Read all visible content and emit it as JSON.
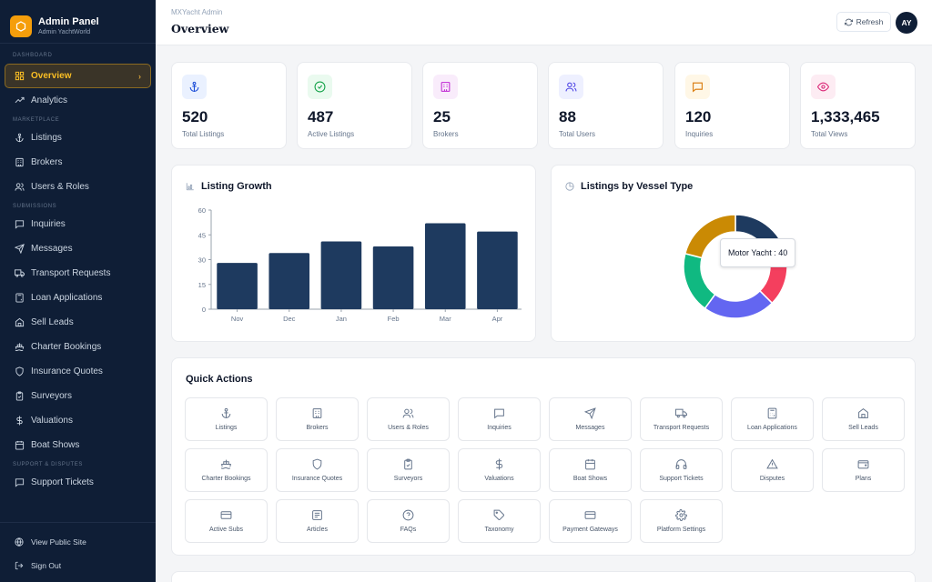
{
  "brand": {
    "title": "Admin Panel",
    "subtitle": "Admin YachtWorld"
  },
  "sidebar": {
    "sections": {
      "dashboard": "DASHBOARD",
      "marketplace": "MARKETPLACE",
      "submissions": "SUBMISSIONS",
      "support": "SUPPORT & DISPUTES"
    },
    "items": {
      "overview": "Overview",
      "analytics": "Analytics",
      "listings": "Listings",
      "brokers": "Brokers",
      "users_roles": "Users & Roles",
      "inquiries": "Inquiries",
      "messages": "Messages",
      "transport": "Transport Requests",
      "loans": "Loan Applications",
      "sell_leads": "Sell Leads",
      "charter": "Charter Bookings",
      "insurance": "Insurance Quotes",
      "surveyors": "Surveyors",
      "valuations": "Valuations",
      "boat_shows": "Boat Shows",
      "support_tickets": "Support Tickets"
    },
    "footer": {
      "view_public": "View Public Site",
      "sign_out": "Sign Out"
    }
  },
  "header": {
    "breadcrumb": "MXYacht Admin",
    "title": "Overview",
    "refresh": "Refresh",
    "avatar": "AY"
  },
  "stats": [
    {
      "value": "520",
      "label": "Total Listings",
      "icon": "anchor-icon",
      "color": "#1d4ed8",
      "bg": "#eaf1ff"
    },
    {
      "value": "487",
      "label": "Active Listings",
      "icon": "check-circle-icon",
      "color": "#16a34a",
      "bg": "#eafaef"
    },
    {
      "value": "25",
      "label": "Brokers",
      "icon": "building-icon",
      "color": "#c026d3",
      "bg": "#f9ecfb"
    },
    {
      "value": "88",
      "label": "Total Users",
      "icon": "users-icon",
      "color": "#4f46e5",
      "bg": "#eef0ff"
    },
    {
      "value": "120",
      "label": "Inquiries",
      "icon": "message-square-icon",
      "color": "#d97706",
      "bg": "#fff7e6"
    },
    {
      "value": "1,333,465",
      "label": "Total Views",
      "icon": "eye-icon",
      "color": "#db2777",
      "bg": "#fdecf3"
    }
  ],
  "growth": {
    "title": "Listing Growth"
  },
  "vessel": {
    "title": "Listings by Vessel Type",
    "tooltip": "Motor Yacht : 40"
  },
  "chart_data": [
    {
      "type": "bar",
      "categories": [
        "Nov",
        "Dec",
        "Jan",
        "Feb",
        "Mar",
        "Apr"
      ],
      "values": [
        28,
        34,
        41,
        38,
        52,
        47
      ],
      "ylim": [
        0,
        60
      ],
      "yticks": [
        0,
        15,
        30,
        45,
        60
      ],
      "color": "#1e3a5f"
    },
    {
      "type": "pie",
      "series": [
        {
          "name": "Motor Yacht",
          "value": 40,
          "color": "#1e3a5f"
        },
        {
          "value": 35,
          "color": "#f43f5e"
        },
        {
          "value": 45,
          "color": "#6366f1"
        },
        {
          "value": 38,
          "color": "#10b981"
        },
        {
          "value": 42,
          "color": "#ca8a04"
        }
      ]
    }
  ],
  "quick_actions": {
    "title": "Quick Actions",
    "items": [
      {
        "label": "Listings",
        "icon": "anchor-icon"
      },
      {
        "label": "Brokers",
        "icon": "building-icon"
      },
      {
        "label": "Users & Roles",
        "icon": "users-icon"
      },
      {
        "label": "Inquiries",
        "icon": "message-square-icon"
      },
      {
        "label": "Messages",
        "icon": "send-icon"
      },
      {
        "label": "Transport Requests",
        "icon": "truck-icon"
      },
      {
        "label": "Loan Applications",
        "icon": "calculator-icon"
      },
      {
        "label": "Sell Leads",
        "icon": "home-icon"
      },
      {
        "label": "Charter Bookings",
        "icon": "ship-icon"
      },
      {
        "label": "Insurance Quotes",
        "icon": "shield-icon"
      },
      {
        "label": "Surveyors",
        "icon": "clipboard-check-icon"
      },
      {
        "label": "Valuations",
        "icon": "dollar-icon"
      },
      {
        "label": "Boat Shows",
        "icon": "calendar-icon"
      },
      {
        "label": "Support Tickets",
        "icon": "headphones-icon"
      },
      {
        "label": "Disputes",
        "icon": "alert-triangle-icon"
      },
      {
        "label": "Plans",
        "icon": "wallet-icon"
      },
      {
        "label": "Active Subs",
        "icon": "credit-card-icon"
      },
      {
        "label": "Articles",
        "icon": "newspaper-icon"
      },
      {
        "label": "FAQs",
        "icon": "help-circle-icon"
      },
      {
        "label": "Taxonomy",
        "icon": "tag-icon"
      },
      {
        "label": "Payment Gateways",
        "icon": "credit-card-icon"
      },
      {
        "label": "Platform Settings",
        "icon": "gear-icon"
      }
    ]
  }
}
